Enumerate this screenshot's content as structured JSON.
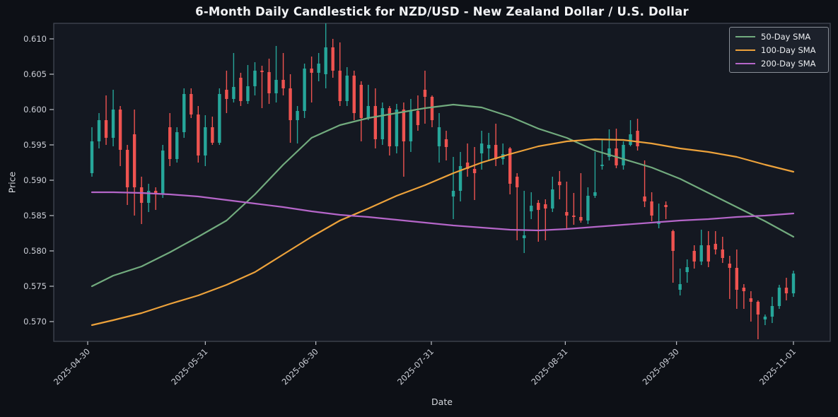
{
  "title": "6-Month Daily Candlestick for NZD/USD - New Zealand Dollar / U.S. Dollar",
  "axes": {
    "x_label": "Date",
    "y_label": "Price",
    "y_ticks": [
      0.57,
      0.575,
      0.58,
      0.585,
      0.59,
      0.595,
      0.6,
      0.605,
      0.61
    ],
    "x_ticks": [
      {
        "label": "2025-04-30",
        "i": -0.6
      },
      {
        "label": "2025-05-31",
        "i": 16.0
      },
      {
        "label": "2025-06-30",
        "i": 31.6
      },
      {
        "label": "2025-07-31",
        "i": 47.9
      },
      {
        "label": "2025-08-31",
        "i": 66.8
      },
      {
        "label": "2025-09-30",
        "i": 82.5
      },
      {
        "label": "2025-11-01",
        "i": 99.0
      }
    ]
  },
  "legend": {
    "items": [
      {
        "label": "50-Day SMA",
        "color": "#72ab7e"
      },
      {
        "label": "100-Day SMA",
        "color": "#eda23b"
      },
      {
        "label": "200-Day SMA",
        "color": "#b566c9"
      }
    ]
  },
  "colors": {
    "up": "#26a69a",
    "down": "#ef5350",
    "background": "#0d1016",
    "plot_background": "#141821",
    "spine": "#454b57",
    "tick_text": "#cdd0d8",
    "title_text": "#f2f3f5"
  },
  "chart_data": {
    "type": "candlestick",
    "symbol": "NZD/USD",
    "timeframe": "6-month daily",
    "title": "6-Month Daily Candlestick for NZD/USD - New Zealand Dollar / U.S. Dollar",
    "xlabel": "Date",
    "ylabel": "Price",
    "grid": false,
    "legend_position": "upper right",
    "y_range": [
      0.5672,
      0.6122
    ],
    "candles_ohlc": [
      [
        0.591,
        0.5975,
        0.5905,
        0.5955
      ],
      [
        0.5955,
        0.5995,
        0.5945,
        0.5985
      ],
      [
        0.5985,
        0.602,
        0.595,
        0.596
      ],
      [
        0.596,
        0.6028,
        0.5948,
        0.6
      ],
      [
        0.6,
        0.6005,
        0.592,
        0.5943
      ],
      [
        0.5943,
        0.595,
        0.5865,
        0.589
      ],
      [
        0.5965,
        0.6,
        0.585,
        0.589
      ],
      [
        0.589,
        0.5905,
        0.5838,
        0.5868
      ],
      [
        0.5868,
        0.5895,
        0.5855,
        0.5885
      ],
      [
        0.5885,
        0.589,
        0.5858,
        0.588
      ],
      [
        0.588,
        0.595,
        0.5875,
        0.5942
      ],
      [
        0.5975,
        0.5995,
        0.592,
        0.593
      ],
      [
        0.593,
        0.5975,
        0.5925,
        0.5968
      ],
      [
        0.5968,
        0.603,
        0.596,
        0.6022
      ],
      [
        0.6022,
        0.603,
        0.5988,
        0.5993
      ],
      [
        0.5993,
        0.6005,
        0.5925,
        0.5935
      ],
      [
        0.5935,
        0.5992,
        0.592,
        0.5975
      ],
      [
        0.5975,
        0.599,
        0.595,
        0.5953
      ],
      [
        0.5953,
        0.603,
        0.595,
        0.6022
      ],
      [
        0.6028,
        0.6055,
        0.5995,
        0.6015
      ],
      [
        0.6015,
        0.608,
        0.601,
        0.6032
      ],
      [
        0.6045,
        0.6052,
        0.6005,
        0.6012
      ],
      [
        0.6012,
        0.6063,
        0.6008,
        0.6033
      ],
      [
        0.6033,
        0.6067,
        0.602,
        0.6055
      ],
      [
        0.6055,
        0.6062,
        0.6002,
        0.6053
      ],
      [
        0.6053,
        0.6072,
        0.6008,
        0.6023
      ],
      [
        0.6023,
        0.609,
        0.601,
        0.6042
      ],
      [
        0.6042,
        0.608,
        0.602,
        0.603
      ],
      [
        0.603,
        0.605,
        0.5953,
        0.5985
      ],
      [
        0.5985,
        0.6005,
        0.5952,
        0.5998
      ],
      [
        0.5998,
        0.6065,
        0.5988,
        0.6058
      ],
      [
        0.6058,
        0.6075,
        0.601,
        0.6052
      ],
      [
        0.6052,
        0.608,
        0.604,
        0.6065
      ],
      [
        0.605,
        0.6122,
        0.603,
        0.6088
      ],
      [
        0.6088,
        0.61,
        0.6045,
        0.6055
      ],
      [
        0.6055,
        0.6095,
        0.6005,
        0.6012
      ],
      [
        0.6012,
        0.606,
        0.6005,
        0.6048
      ],
      [
        0.6048,
        0.6055,
        0.5985,
        0.5995
      ],
      [
        0.6035,
        0.604,
        0.5955,
        0.5988
      ],
      [
        0.5988,
        0.6035,
        0.5985,
        0.6005
      ],
      [
        0.6005,
        0.603,
        0.5945,
        0.5958
      ],
      [
        0.5958,
        0.601,
        0.595,
        0.6002
      ],
      [
        0.6002,
        0.6005,
        0.5935,
        0.5948
      ],
      [
        0.5948,
        0.6008,
        0.5938,
        0.6
      ],
      [
        0.6,
        0.601,
        0.5905,
        0.5955
      ],
      [
        0.5955,
        0.6015,
        0.594,
        0.5998
      ],
      [
        0.5998,
        0.602,
        0.597,
        0.5978
      ],
      [
        0.6028,
        0.6055,
        0.598,
        0.6018
      ],
      [
        0.6018,
        0.602,
        0.5975,
        0.5985
      ],
      [
        0.5948,
        0.5995,
        0.5925,
        0.5975
      ],
      [
        0.5958,
        0.597,
        0.5928,
        0.5947
      ],
      [
        0.5877,
        0.5933,
        0.5845,
        0.5885
      ],
      [
        0.5885,
        0.594,
        0.587,
        0.592
      ],
      [
        0.5925,
        0.5952,
        0.5905,
        0.5916
      ],
      [
        0.5916,
        0.5947,
        0.5872,
        0.591
      ],
      [
        0.5938,
        0.597,
        0.5915,
        0.5952
      ],
      [
        0.5945,
        0.5967,
        0.5927,
        0.595
      ],
      [
        0.595,
        0.598,
        0.592,
        0.593
      ],
      [
        0.593,
        0.5952,
        0.5922,
        0.5937
      ],
      [
        0.5945,
        0.5947,
        0.588,
        0.5895
      ],
      [
        0.5905,
        0.591,
        0.5815,
        0.589
      ],
      [
        0.5818,
        0.5885,
        0.5797,
        0.5822
      ],
      [
        0.5856,
        0.5883,
        0.5845,
        0.5864
      ],
      [
        0.5868,
        0.5872,
        0.5813,
        0.5858
      ],
      [
        0.5866,
        0.5873,
        0.5815,
        0.586
      ],
      [
        0.586,
        0.5905,
        0.5855,
        0.5887
      ],
      [
        0.5898,
        0.5913,
        0.5873,
        0.5893
      ],
      [
        0.5855,
        0.5898,
        0.583,
        0.585
      ],
      [
        0.585,
        0.5882,
        0.5837,
        0.5848
      ],
      [
        0.5848,
        0.591,
        0.584,
        0.5843
      ],
      [
        0.5843,
        0.589,
        0.5838,
        0.5878
      ],
      [
        0.5878,
        0.594,
        0.5875,
        0.5883
      ],
      [
        0.592,
        0.5957,
        0.5915,
        0.5922
      ],
      [
        0.5933,
        0.5972,
        0.5928,
        0.5945
      ],
      [
        0.5945,
        0.5973,
        0.5917,
        0.5921
      ],
      [
        0.5921,
        0.5955,
        0.5915,
        0.595
      ],
      [
        0.595,
        0.5985,
        0.5948,
        0.5965
      ],
      [
        0.597,
        0.5987,
        0.5942,
        0.5948
      ],
      [
        0.5877,
        0.5928,
        0.5862,
        0.587
      ],
      [
        0.587,
        0.5883,
        0.5842,
        0.585
      ],
      [
        0.5838,
        0.5867,
        0.5832,
        0.5842
      ],
      [
        0.5865,
        0.587,
        0.5845,
        0.5862
      ],
      [
        0.5828,
        0.583,
        0.5755,
        0.58
      ],
      [
        0.5745,
        0.5775,
        0.5737,
        0.5753
      ],
      [
        0.577,
        0.5788,
        0.5755,
        0.5777
      ],
      [
        0.58,
        0.5808,
        0.5775,
        0.5785
      ],
      [
        0.5785,
        0.583,
        0.578,
        0.5808
      ],
      [
        0.5808,
        0.5828,
        0.5777,
        0.5785
      ],
      [
        0.581,
        0.5828,
        0.5795,
        0.5802
      ],
      [
        0.5802,
        0.582,
        0.5783,
        0.579
      ],
      [
        0.5782,
        0.5793,
        0.5732,
        0.5776
      ],
      [
        0.5776,
        0.5802,
        0.5718,
        0.5745
      ],
      [
        0.5748,
        0.5753,
        0.5718,
        0.5743
      ],
      [
        0.5733,
        0.5743,
        0.57,
        0.5728
      ],
      [
        0.5728,
        0.573,
        0.5675,
        0.571
      ],
      [
        0.5703,
        0.571,
        0.5695,
        0.5707
      ],
      [
        0.5707,
        0.5735,
        0.5698,
        0.5722
      ],
      [
        0.5722,
        0.5752,
        0.5718,
        0.5748
      ],
      [
        0.5748,
        0.5762,
        0.573,
        0.574
      ],
      [
        0.574,
        0.5772,
        0.5735,
        0.5768
      ]
    ],
    "series": [
      {
        "name": "50-Day SMA",
        "color": "#72ab7e",
        "sample_indices": [
          0,
          3,
          7,
          11,
          15,
          19,
          23,
          27,
          31,
          35,
          39,
          43,
          47,
          51,
          55,
          59,
          63,
          67,
          71,
          75,
          79,
          83,
          87,
          91,
          95,
          99
        ],
        "values": [
          0.575,
          0.5765,
          0.5778,
          0.5798,
          0.582,
          0.5843,
          0.588,
          0.5922,
          0.596,
          0.5978,
          0.5988,
          0.5995,
          0.6002,
          0.6007,
          0.6003,
          0.599,
          0.5973,
          0.596,
          0.5942,
          0.593,
          0.5918,
          0.5902,
          0.5882,
          0.5862,
          0.5842,
          0.582
        ]
      },
      {
        "name": "100-Day SMA",
        "color": "#eda23b",
        "sample_indices": [
          0,
          3,
          7,
          11,
          15,
          19,
          23,
          27,
          31,
          35,
          39,
          43,
          47,
          51,
          55,
          59,
          63,
          67,
          71,
          75,
          79,
          83,
          87,
          91,
          95,
          99
        ],
        "values": [
          0.5695,
          0.5702,
          0.5712,
          0.5725,
          0.5737,
          0.5752,
          0.577,
          0.5795,
          0.582,
          0.5843,
          0.586,
          0.5878,
          0.5893,
          0.591,
          0.5925,
          0.5937,
          0.5948,
          0.5955,
          0.5958,
          0.5957,
          0.5952,
          0.5945,
          0.594,
          0.5933,
          0.5922,
          0.5912
        ]
      },
      {
        "name": "200-Day SMA",
        "color": "#b566c9",
        "sample_indices": [
          0,
          3,
          7,
          11,
          15,
          19,
          23,
          27,
          31,
          35,
          39,
          43,
          47,
          51,
          55,
          59,
          63,
          67,
          71,
          75,
          79,
          83,
          87,
          91,
          95,
          99
        ],
        "values": [
          0.5883,
          0.5883,
          0.5882,
          0.588,
          0.5877,
          0.5872,
          0.5867,
          0.5862,
          0.5856,
          0.5851,
          0.5848,
          0.5844,
          0.584,
          0.5836,
          0.5833,
          0.583,
          0.5829,
          0.5831,
          0.5834,
          0.5837,
          0.584,
          0.5843,
          0.5845,
          0.5848,
          0.585,
          0.5853
        ]
      }
    ]
  }
}
